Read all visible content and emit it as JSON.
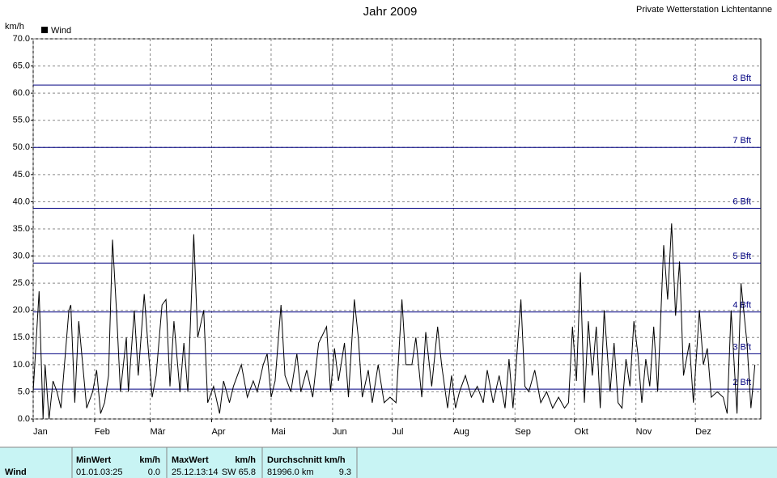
{
  "chart_data": {
    "type": "line",
    "title": "Jahr 2009",
    "station": "Private Wetterstation Lichtentanne",
    "y_label": "km/h",
    "x": [
      0,
      3,
      5,
      6,
      8,
      10,
      12,
      14,
      18,
      19,
      21,
      23,
      25,
      27,
      30,
      32,
      34,
      36,
      38,
      40,
      42,
      44,
      47,
      48,
      51,
      53,
      56,
      58,
      60,
      62,
      65,
      67,
      69,
      71,
      74,
      76,
      78,
      81,
      83,
      86,
      88,
      91,
      94,
      96,
      99,
      101,
      105,
      108,
      111,
      113,
      116,
      118,
      120,
      122,
      125,
      127,
      130,
      133,
      135,
      138,
      141,
      144,
      148,
      150,
      152,
      154,
      157,
      159,
      162,
      164,
      166,
      169,
      171,
      174,
      177,
      180,
      183,
      186,
      188,
      191,
      193,
      196,
      198,
      201,
      204,
      206,
      209,
      211,
      213,
      215,
      218,
      221,
      224,
      227,
      229,
      232,
      235,
      238,
      240,
      242,
      246,
      248,
      250,
      253,
      256,
      259,
      262,
      265,
      268,
      270,
      272,
      274,
      276,
      278,
      280,
      282,
      284,
      286,
      288,
      291,
      293,
      295,
      297,
      299,
      301,
      303,
      305,
      307,
      309,
      311,
      313,
      315,
      318,
      320,
      322,
      324,
      326,
      328,
      331,
      333,
      336,
      338,
      340,
      342,
      345,
      348,
      350,
      352,
      355,
      357,
      360,
      362,
      364
    ],
    "series": [
      {
        "name": "Wind",
        "color": "#000000",
        "values": [
          5,
          23.5,
          0,
          10,
          0,
          7,
          5,
          2,
          20,
          21,
          3,
          18,
          10,
          2,
          5,
          9,
          1,
          3,
          8,
          33,
          20,
          5,
          15,
          5,
          20,
          8,
          23,
          13,
          4,
          8,
          21,
          22,
          6,
          18,
          5,
          14,
          5,
          34,
          15,
          20,
          3,
          6,
          1,
          7,
          3,
          6,
          10,
          4,
          7,
          5,
          10,
          12,
          4,
          7,
          21,
          8,
          5,
          12,
          5,
          9,
          4,
          14,
          17,
          5,
          13,
          7,
          14,
          4,
          22,
          15,
          4,
          9,
          3,
          10,
          3,
          4,
          3,
          22,
          10,
          10,
          15,
          4,
          16,
          6,
          17,
          10,
          2,
          8,
          2,
          5,
          8,
          4,
          6,
          3,
          9,
          3,
          8,
          2,
          11,
          2,
          22,
          6,
          5,
          9,
          3,
          5,
          2,
          4,
          2,
          3,
          17,
          7,
          27,
          3,
          18,
          8,
          17,
          2,
          20,
          5,
          14,
          3,
          2,
          11,
          6,
          18,
          12,
          3,
          11,
          6,
          17,
          5,
          32,
          22,
          36,
          19,
          29,
          8,
          14,
          3,
          20,
          10,
          13,
          4,
          5,
          4,
          1,
          20,
          1,
          25,
          14,
          2,
          10
        ]
      }
    ],
    "xlim": [
      0,
      367
    ],
    "ylim": [
      0,
      70
    ],
    "xticks": [
      {
        "value": 0,
        "label": "Jan"
      },
      {
        "value": 31,
        "label": "Feb"
      },
      {
        "value": 59,
        "label": "Mär"
      },
      {
        "value": 90,
        "label": "Apr"
      },
      {
        "value": 120,
        "label": "Mai"
      },
      {
        "value": 151,
        "label": "Jun"
      },
      {
        "value": 181,
        "label": "Jul"
      },
      {
        "value": 212,
        "label": "Aug"
      },
      {
        "value": 243,
        "label": "Sep"
      },
      {
        "value": 273,
        "label": "Okt"
      },
      {
        "value": 304,
        "label": "Nov"
      },
      {
        "value": 334,
        "label": "Dez"
      }
    ],
    "yticks": [
      {
        "value": 0,
        "label": "0.0"
      },
      {
        "value": 5,
        "label": "5.0"
      },
      {
        "value": 10,
        "label": "10.0"
      },
      {
        "value": 15,
        "label": "15.0"
      },
      {
        "value": 20,
        "label": "20.0"
      },
      {
        "value": 25,
        "label": "25.0"
      },
      {
        "value": 30,
        "label": "30.0"
      },
      {
        "value": 35,
        "label": "35.0"
      },
      {
        "value": 40,
        "label": "40.0"
      },
      {
        "value": 45,
        "label": "45.0"
      },
      {
        "value": 50,
        "label": "50.0"
      },
      {
        "value": 55,
        "label": "55.0"
      },
      {
        "value": 60,
        "label": "60.0"
      },
      {
        "value": 65,
        "label": "65.0"
      },
      {
        "value": 70,
        "label": "70.0"
      }
    ],
    "reference_lines": [
      {
        "value": 5.5,
        "label": "2 Bft"
      },
      {
        "value": 12,
        "label": "3 Bft"
      },
      {
        "value": 19.7,
        "label": "4 Bft"
      },
      {
        "value": 28.7,
        "label": "5 Bft"
      },
      {
        "value": 38.8,
        "label": "6 Bft"
      },
      {
        "value": 50,
        "label": "7 Bft"
      },
      {
        "value": 61.5,
        "label": "8 Bft"
      }
    ],
    "reference_color": "#000080",
    "grid": true
  },
  "stats_table": {
    "header": [
      "MinWert",
      "km/h",
      "MaxWert",
      "km/h",
      "Durchschnitt km/h"
    ],
    "row_label": "Wind",
    "row": [
      "01.01.",
      "03:25",
      "0.0",
      "25.12.",
      "13:14",
      "SW 65.8",
      "81996.0 km",
      "9.3"
    ]
  }
}
